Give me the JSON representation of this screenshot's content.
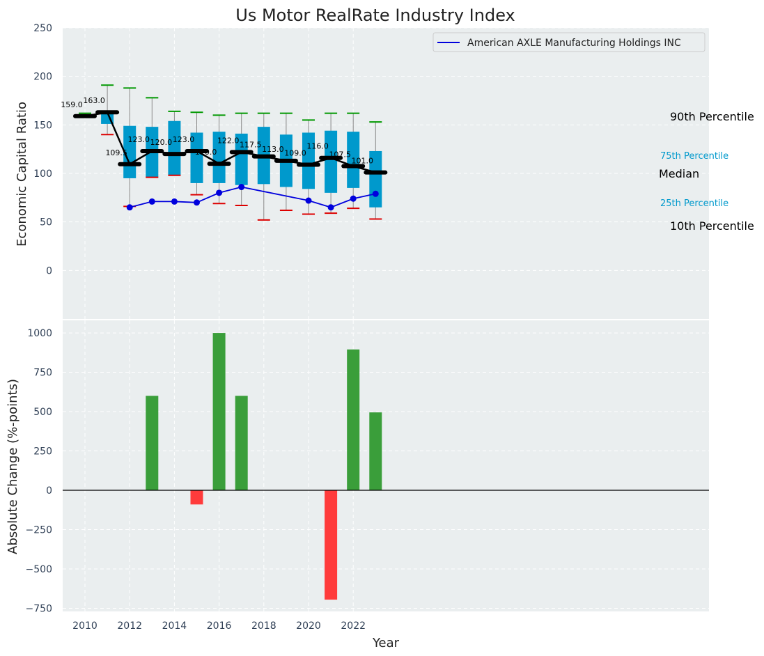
{
  "chart_data": {
    "type": "box-line-bar",
    "title": "Us Motor RealRate Industry Index",
    "xlabel": "Year",
    "colors": {
      "background": "#eaeeef",
      "box": "#0099cc",
      "median_line": "#000000",
      "company_line": "#0000dd",
      "whisker_high": "#009900",
      "whisker_low": "#dd0000",
      "bar_positive": "#3a9e3a",
      "bar_negative": "#ff3b3b"
    },
    "x_ticks": [
      "2010",
      "2012",
      "2014",
      "2016",
      "2018",
      "2020",
      "2022"
    ],
    "top": {
      "ylabel": "Economic Capital Ratio",
      "y_ticks": [
        "250",
        "200",
        "150",
        "100",
        "50",
        "0"
      ],
      "ylim": [
        -50,
        250
      ],
      "legend": {
        "label": "American AXLE Manufacturing Holdings INC",
        "position": "top-right"
      },
      "percentile_labels": {
        "p90": "90th Percentile",
        "p75": "75th Percentile",
        "median": "Median",
        "p25": "25th Percentile",
        "p10": "10th Percentile"
      },
      "boxes": [
        {
          "year": 2010,
          "p10": 159,
          "q1": 159,
          "median": 159,
          "q3": 159,
          "p90": 162,
          "label": "159.0"
        },
        {
          "year": 2011,
          "p10": 140,
          "q1": 151,
          "median": 163,
          "q3": 163,
          "p90": 191,
          "label": "163.0"
        },
        {
          "year": 2012,
          "p10": 66,
          "q1": 95,
          "median": 109.5,
          "q3": 149,
          "p90": 188,
          "label": "109.5"
        },
        {
          "year": 2013,
          "p10": 96,
          "q1": 96,
          "median": 123,
          "q3": 148,
          "p90": 178,
          "label": "123.0"
        },
        {
          "year": 2014,
          "p10": 98,
          "q1": 98,
          "median": 120,
          "q3": 154,
          "p90": 164,
          "label": "120.0"
        },
        {
          "year": 2015,
          "p10": 78,
          "q1": 90,
          "median": 123,
          "q3": 142,
          "p90": 163,
          "label": "123.0"
        },
        {
          "year": 2016,
          "p10": 69,
          "q1": 90,
          "median": 110,
          "q3": 143,
          "p90": 160,
          "label": "110.0"
        },
        {
          "year": 2017,
          "p10": 67,
          "q1": 88,
          "median": 122,
          "q3": 141,
          "p90": 162,
          "label": "122.0"
        },
        {
          "year": 2018,
          "p10": 52,
          "q1": 89,
          "median": 117.5,
          "q3": 148,
          "p90": 162,
          "label": "117.5"
        },
        {
          "year": 2019,
          "p10": 62,
          "q1": 86,
          "median": 113,
          "q3": 140,
          "p90": 162,
          "label": "113.0"
        },
        {
          "year": 2020,
          "p10": 58,
          "q1": 84,
          "median": 109,
          "q3": 142,
          "p90": 155,
          "label": "109.0"
        },
        {
          "year": 2021,
          "p10": 59,
          "q1": 80,
          "median": 116,
          "q3": 144,
          "p90": 162,
          "label": "116.0"
        },
        {
          "year": 2022,
          "p10": 64,
          "q1": 85,
          "median": 107.5,
          "q3": 143,
          "p90": 162,
          "label": "107.5"
        },
        {
          "year": 2023,
          "p10": 53,
          "q1": 65,
          "median": 101,
          "q3": 123,
          "p90": 153,
          "label": "101.0"
        }
      ],
      "company_series": [
        {
          "year": 2012,
          "value": 65
        },
        {
          "year": 2013,
          "value": 71
        },
        {
          "year": 2014,
          "value": 71
        },
        {
          "year": 2015,
          "value": 70
        },
        {
          "year": 2016,
          "value": 80
        },
        {
          "year": 2017,
          "value": 86
        },
        {
          "year": 2020,
          "value": 72
        },
        {
          "year": 2021,
          "value": 65
        },
        {
          "year": 2022,
          "value": 74
        },
        {
          "year": 2023,
          "value": 79
        }
      ]
    },
    "bottom": {
      "ylabel": "Absolute Change (%-points)",
      "y_ticks": [
        "1000",
        "750",
        "500",
        "250",
        "0",
        "−250",
        "−500",
        "−750"
      ],
      "ylim": [
        -770,
        1080
      ],
      "bars": [
        {
          "year": 2013,
          "value": 600
        },
        {
          "year": 2015,
          "value": -90
        },
        {
          "year": 2016,
          "value": 1000
        },
        {
          "year": 2017,
          "value": 600
        },
        {
          "year": 2021,
          "value": -695
        },
        {
          "year": 2022,
          "value": 895
        },
        {
          "year": 2023,
          "value": 495
        }
      ]
    }
  }
}
